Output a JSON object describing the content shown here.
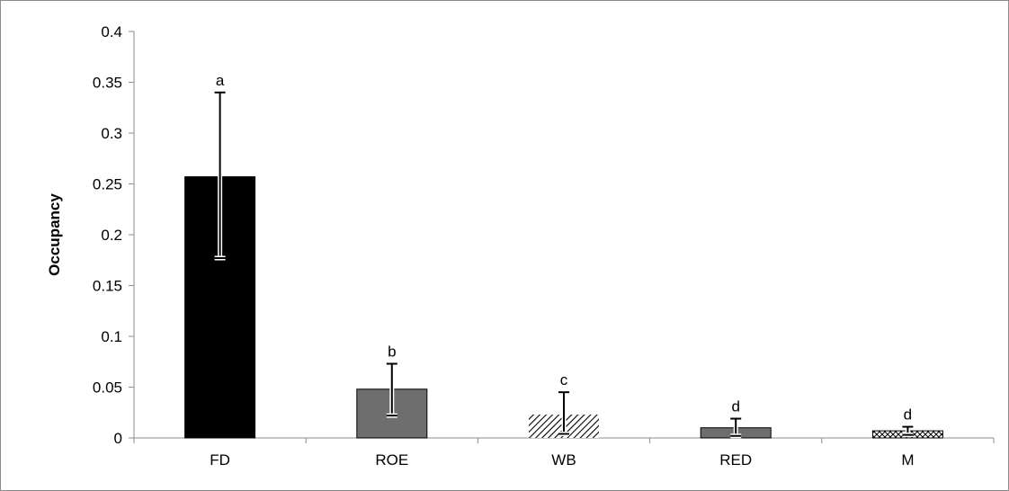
{
  "chart_data": {
    "type": "bar",
    "title": "",
    "xlabel": "",
    "ylabel": "Occupancy",
    "ylim": [
      0,
      0.4
    ],
    "yticks": [
      "0",
      "0.05",
      "0.1",
      "0.15",
      "0.2",
      "0.25",
      "0.3",
      "0.35",
      "0.4"
    ],
    "categories": [
      "FD",
      "ROE",
      "WB",
      "RED",
      "M"
    ],
    "values": [
      0.257,
      0.048,
      0.023,
      0.01,
      0.007
    ],
    "error_low": [
      0.177,
      0.022,
      0.004,
      0.002,
      0.003
    ],
    "error_high": [
      0.34,
      0.073,
      0.045,
      0.019,
      0.011
    ],
    "significance_labels": [
      "a",
      "b",
      "c",
      "d",
      "d"
    ],
    "bar_fills": [
      "solid-black",
      "solid-gray",
      "diagonal-hatch",
      "solid-gray",
      "crosshatch"
    ],
    "colors": {
      "black": "#000000",
      "gray": "#6e6e6e",
      "axis": "#8c8c8c"
    },
    "grid": false,
    "legend": "none"
  }
}
